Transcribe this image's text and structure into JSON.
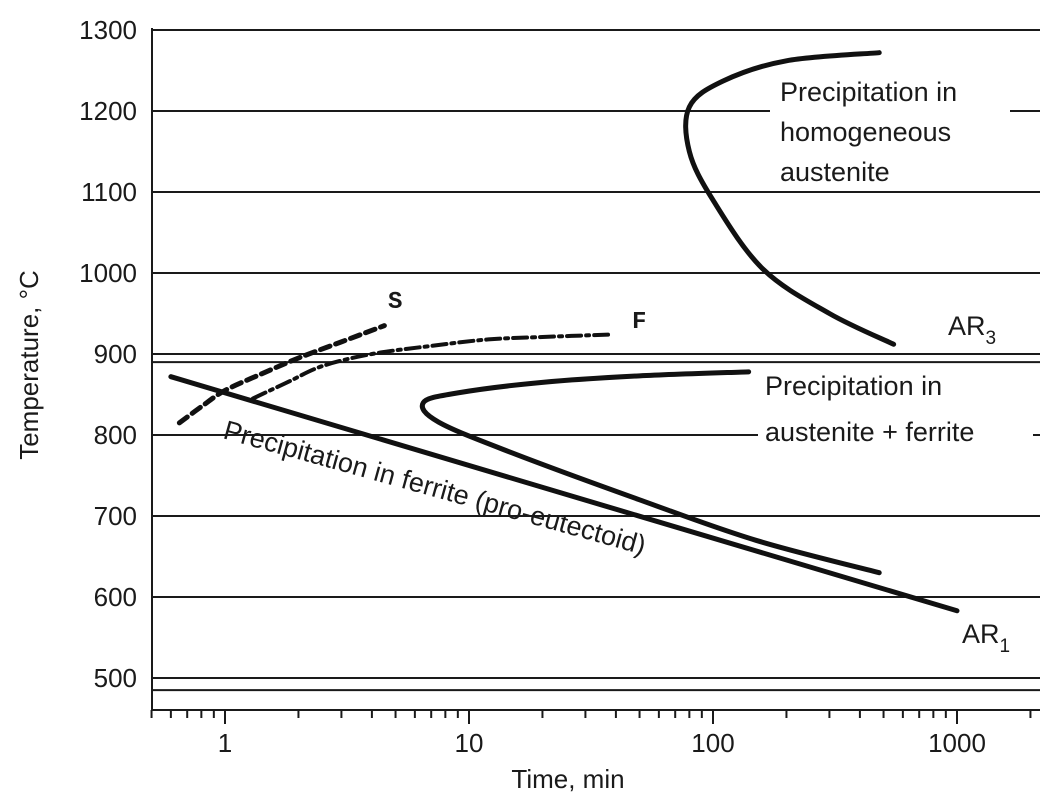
{
  "chart_data": {
    "type": "line",
    "xlabel": "Time, min",
    "ylabel": "Temperature, °C",
    "x_scale": "log",
    "xlim": [
      0.5,
      2500
    ],
    "ylim": [
      450,
      1300
    ],
    "x_ticks": [
      1,
      10,
      100,
      1000
    ],
    "x_tick_labels": [
      "1",
      "10",
      "100",
      "1000"
    ],
    "y_ticks": [
      500,
      600,
      700,
      800,
      900,
      1000,
      1100,
      1200,
      1300
    ],
    "y_tick_labels": [
      "500",
      "600",
      "700",
      "800",
      "900",
      "1000",
      "1100",
      "1200",
      "1300"
    ],
    "grid": true,
    "series": [
      {
        "name": "S",
        "style": "dashed",
        "points": [
          [
            0.65,
            815
          ],
          [
            0.8,
            835
          ],
          [
            1.0,
            855
          ],
          [
            1.4,
            875
          ],
          [
            2.0,
            895
          ],
          [
            3.0,
            915
          ],
          [
            4.5,
            935
          ]
        ]
      },
      {
        "name": "F",
        "style": "dash-dot",
        "points": [
          [
            1.3,
            845
          ],
          [
            1.8,
            865
          ],
          [
            2.5,
            885
          ],
          [
            4,
            900
          ],
          [
            7,
            910
          ],
          [
            12,
            918
          ],
          [
            20,
            921
          ],
          [
            38,
            924
          ]
        ]
      },
      {
        "name": "AR1",
        "style": "solid",
        "points": [
          [
            0.6,
            872
          ],
          [
            1000,
            583
          ]
        ]
      },
      {
        "name": "AR3",
        "style": "solid",
        "points": [
          [
            480,
            1272
          ],
          [
            200,
            1262
          ],
          [
            110,
            1237
          ],
          [
            80,
            1205
          ],
          [
            80,
            1150
          ],
          [
            100,
            1090
          ],
          [
            160,
            1005
          ],
          [
            300,
            950
          ],
          [
            550,
            912
          ]
        ]
      },
      {
        "style": "solid",
        "points": [
          [
            140,
            878
          ],
          [
            50,
            873
          ],
          [
            20,
            865
          ],
          [
            9,
            852
          ],
          [
            6.5,
            840
          ],
          [
            7.5,
            816
          ],
          [
            15,
            778
          ],
          [
            50,
            720
          ],
          [
            150,
            670
          ],
          [
            480,
            630
          ]
        ]
      }
    ],
    "annotations": {
      "homogeneous": [
        "Precipitation in",
        "homogeneous",
        "austenite"
      ],
      "austenite_ferrite": [
        "Precipitation in",
        "austenite + ferrite"
      ],
      "ferrite": "Precipitation in ferrite (pro-eutectoid)",
      "ar3": "AR",
      "ar3_sub": "3",
      "ar1": "AR",
      "ar1_sub": "1",
      "s_label": "S",
      "f_label": "F"
    }
  }
}
